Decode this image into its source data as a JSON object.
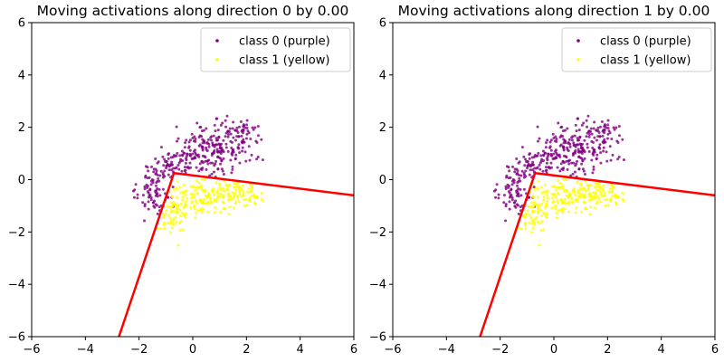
{
  "chart_data": [
    {
      "type": "scatter",
      "title": "Moving activations along direction 0 by 0.00",
      "xlim": [
        -6,
        6
      ],
      "ylim": [
        -6,
        6
      ],
      "xticks": [
        -6,
        -4,
        -2,
        0,
        2,
        4,
        6
      ],
      "yticks": [
        -6,
        -4,
        -2,
        0,
        2,
        4,
        6
      ],
      "xtick_labels": [
        "−6",
        "−4",
        "−2",
        "0",
        "2",
        "4",
        "6"
      ],
      "ytick_labels": [
        "−6",
        "−4",
        "−2",
        "0",
        "2",
        "4",
        "6"
      ],
      "grid": false,
      "legend_position": "top-right",
      "series": [
        {
          "name": "class 0 (purple)",
          "color": "#800080",
          "clusters": [
            {
              "cx": 0.2,
              "cy": 1.0,
              "sx": 0.75,
              "sy": 0.45,
              "n": 160,
              "rot": 0.35
            },
            {
              "cx": 1.3,
              "cy": 1.1,
              "sx": 0.6,
              "sy": 0.5,
              "n": 120,
              "rot": 0.5
            },
            {
              "cx": -1.4,
              "cy": -0.4,
              "sx": 0.45,
              "sy": 0.45,
              "n": 80,
              "rot": 0.0
            },
            {
              "cx": 1.9,
              "cy": 1.9,
              "sx": 0.25,
              "sy": 0.2,
              "n": 25,
              "rot": 0.0
            },
            {
              "cx": -0.9,
              "cy": 0.5,
              "sx": 0.35,
              "sy": 0.3,
              "n": 40,
              "rot": 0.0
            }
          ]
        },
        {
          "name": "class 1 (yellow)",
          "color": "#ffff00",
          "clusters": [
            {
              "cx": 0.5,
              "cy": -0.6,
              "sx": 0.75,
              "sy": 0.35,
              "n": 170,
              "rot": 0.1
            },
            {
              "cx": -0.8,
              "cy": -1.3,
              "sx": 0.3,
              "sy": 0.4,
              "n": 60,
              "rot": 0.0
            },
            {
              "cx": 1.7,
              "cy": -0.5,
              "sx": 0.45,
              "sy": 0.3,
              "n": 60,
              "rot": 0.0
            }
          ]
        }
      ],
      "lines": [
        {
          "name": "direction 0 segment",
          "color": "#ff0000",
          "x": [
            -0.7,
            6.0
          ],
          "y": [
            0.25,
            -0.6
          ]
        },
        {
          "name": "direction 1 segment",
          "color": "#ff0000",
          "x": [
            -0.7,
            -2.75
          ],
          "y": [
            0.25,
            -6.0
          ]
        }
      ]
    },
    {
      "type": "scatter",
      "title": "Moving activations along direction 1 by 0.00",
      "xlim": [
        -6,
        6
      ],
      "ylim": [
        -6,
        6
      ],
      "xticks": [
        -6,
        -4,
        -2,
        0,
        2,
        4,
        6
      ],
      "yticks": [
        -6,
        -4,
        -2,
        0,
        2,
        4,
        6
      ],
      "xtick_labels": [
        "−6",
        "−4",
        "−2",
        "0",
        "2",
        "4",
        "6"
      ],
      "ytick_labels": [
        "−6",
        "−4",
        "−2",
        "0",
        "2",
        "4",
        "6"
      ],
      "grid": false,
      "legend_position": "top-right",
      "series": [
        {
          "name": "class 0 (purple)",
          "color": "#800080",
          "clusters": [
            {
              "cx": 0.2,
              "cy": 1.0,
              "sx": 0.75,
              "sy": 0.45,
              "n": 160,
              "rot": 0.35
            },
            {
              "cx": 1.3,
              "cy": 1.1,
              "sx": 0.6,
              "sy": 0.5,
              "n": 120,
              "rot": 0.5
            },
            {
              "cx": -1.4,
              "cy": -0.4,
              "sx": 0.45,
              "sy": 0.45,
              "n": 80,
              "rot": 0.0
            },
            {
              "cx": 1.9,
              "cy": 1.9,
              "sx": 0.25,
              "sy": 0.2,
              "n": 25,
              "rot": 0.0
            },
            {
              "cx": -0.9,
              "cy": 0.5,
              "sx": 0.35,
              "sy": 0.3,
              "n": 40,
              "rot": 0.0
            }
          ]
        },
        {
          "name": "class 1 (yellow)",
          "color": "#ffff00",
          "clusters": [
            {
              "cx": 0.5,
              "cy": -0.6,
              "sx": 0.75,
              "sy": 0.35,
              "n": 170,
              "rot": 0.1
            },
            {
              "cx": -0.8,
              "cy": -1.3,
              "sx": 0.3,
              "sy": 0.4,
              "n": 60,
              "rot": 0.0
            },
            {
              "cx": 1.7,
              "cy": -0.5,
              "sx": 0.45,
              "sy": 0.3,
              "n": 60,
              "rot": 0.0
            }
          ]
        }
      ],
      "lines": [
        {
          "name": "direction 0 segment",
          "color": "#ff0000",
          "x": [
            -0.7,
            6.0
          ],
          "y": [
            0.25,
            -0.6
          ]
        },
        {
          "name": "direction 1 segment",
          "color": "#ff0000",
          "x": [
            -0.7,
            -2.75
          ],
          "y": [
            0.25,
            -6.0
          ]
        }
      ]
    }
  ]
}
